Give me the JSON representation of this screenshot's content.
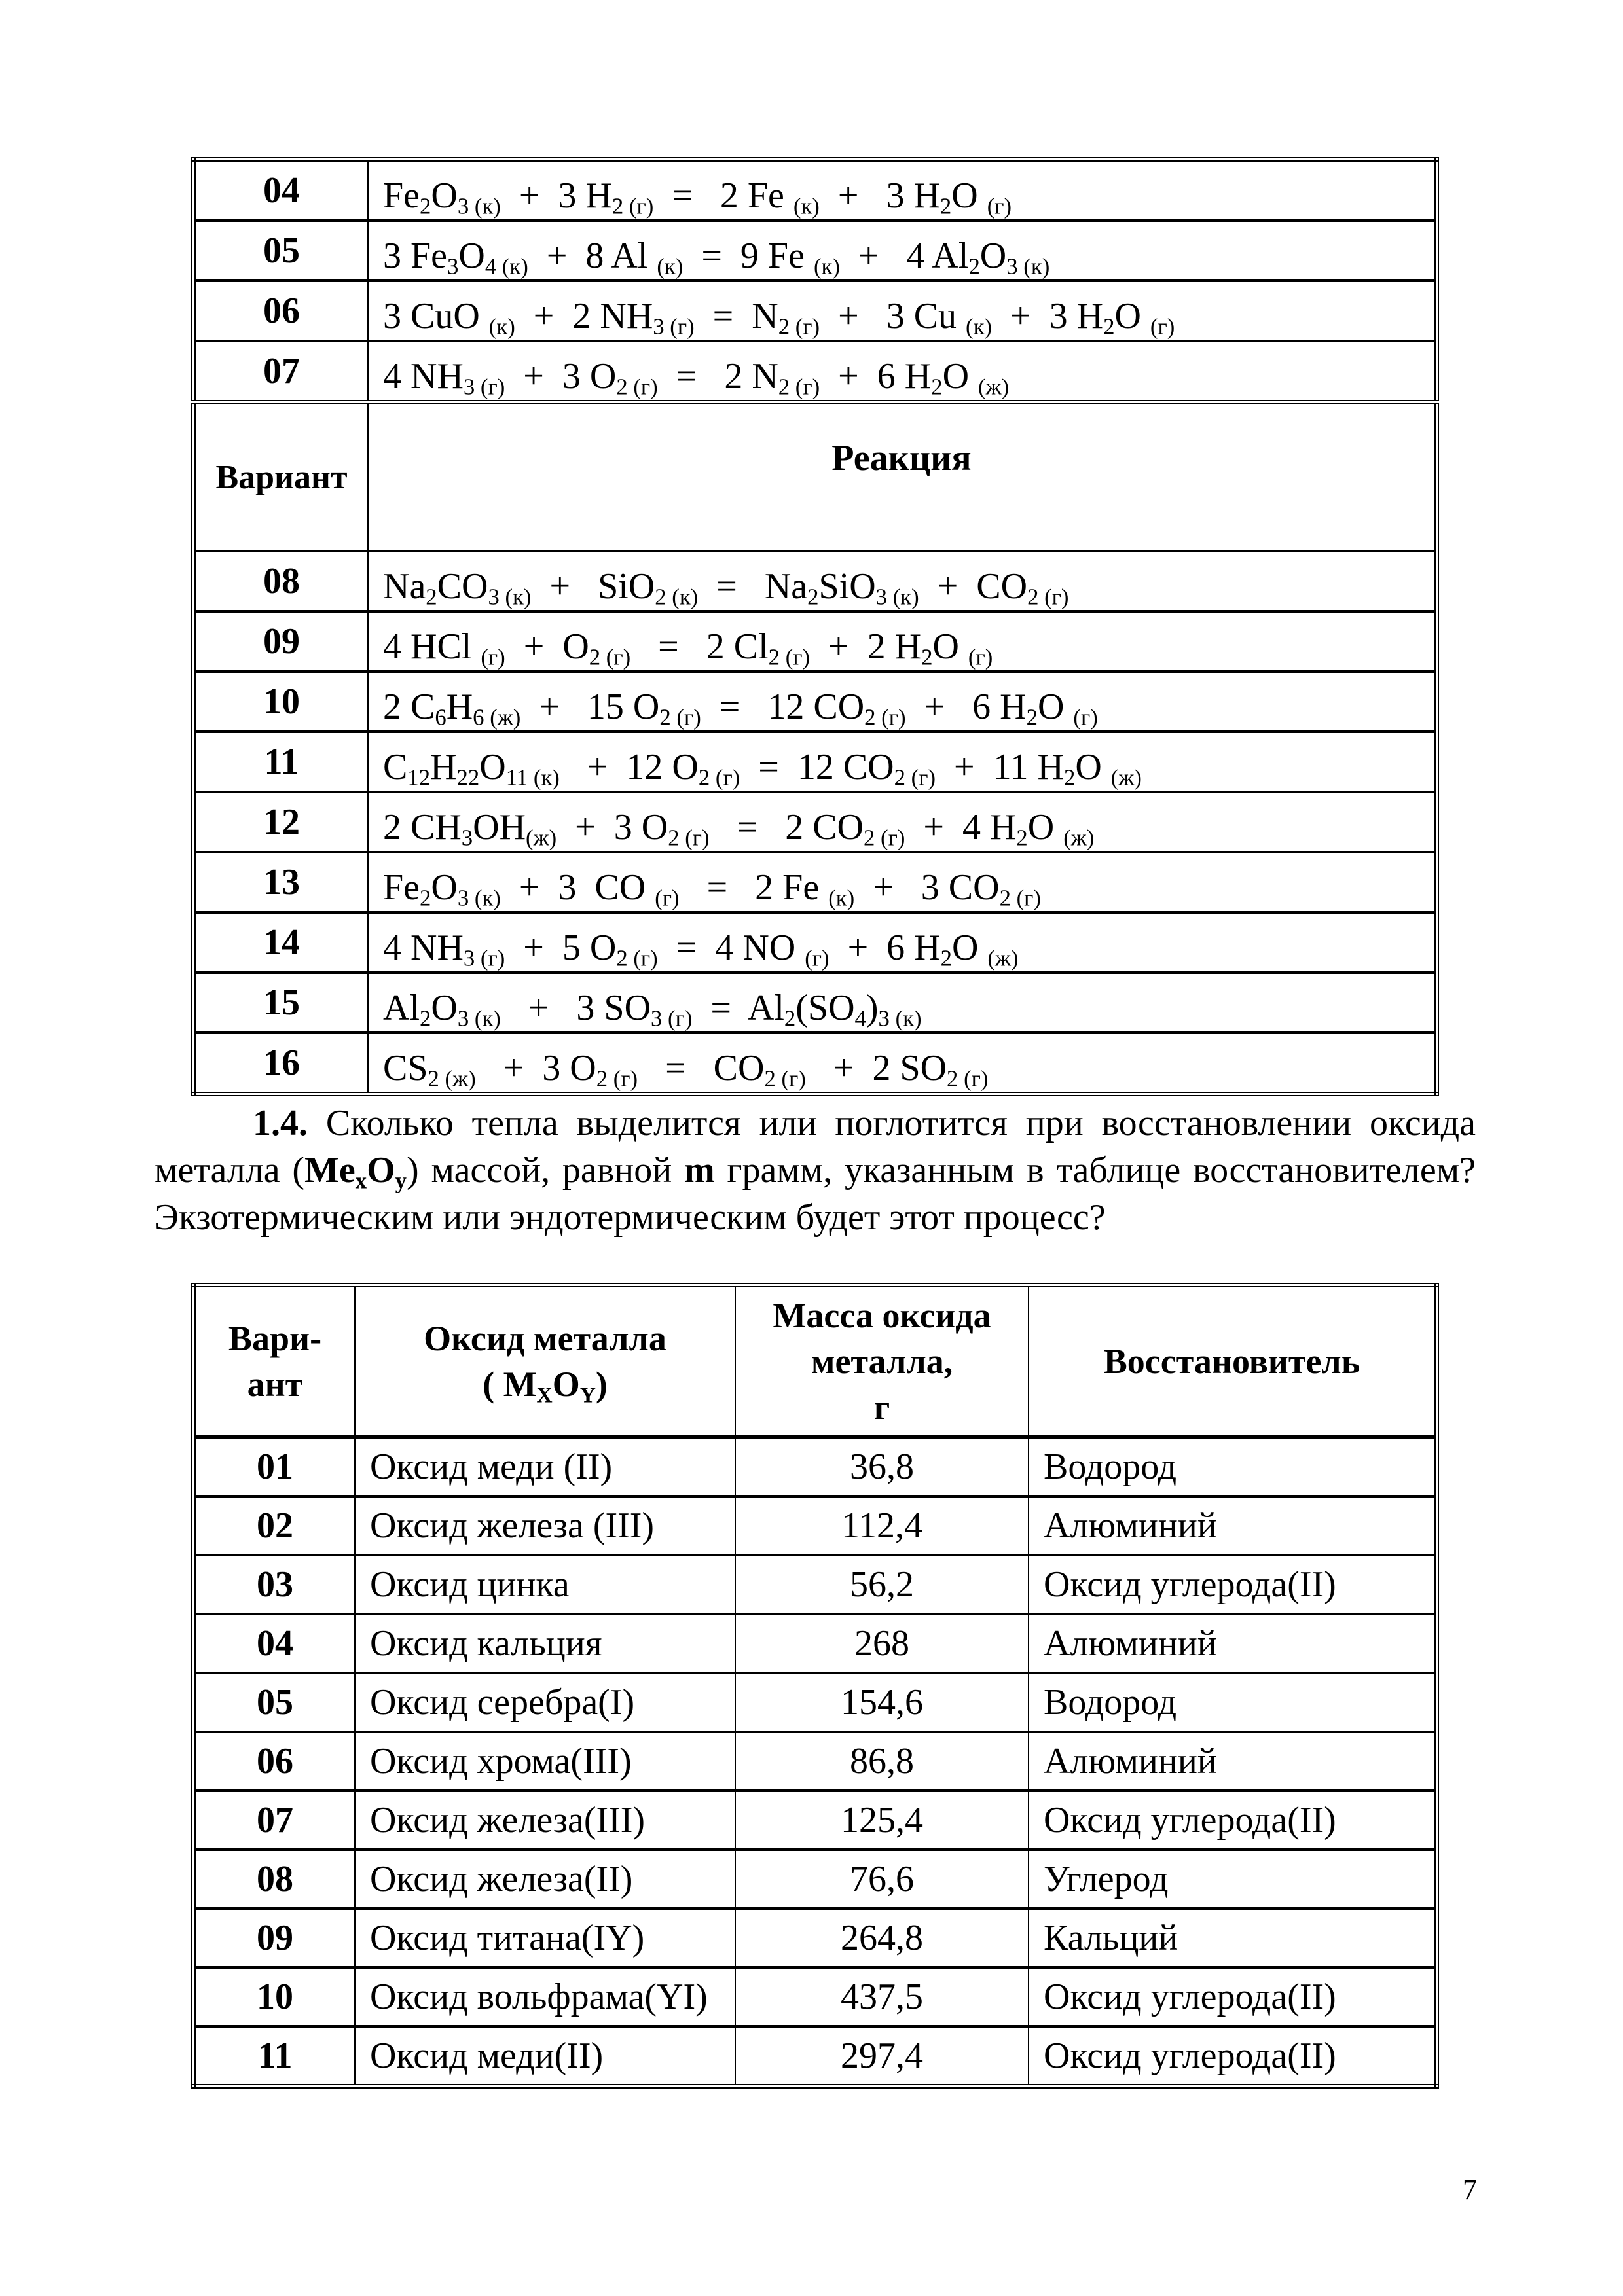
{
  "table1": {
    "header": {
      "variant": "Вариант",
      "reaction": "Реакция"
    },
    "rows_before_header": [
      {
        "variant": "04",
        "equation": [
          [
            "Fe",
            "2"
          ],
          [
            "O",
            "3 (к)"
          ],
          [
            "  +  3 H",
            "2 (г)"
          ],
          [
            "  =   2 Fe ",
            "(к)"
          ],
          [
            "  +   3 H",
            "2"
          ],
          [
            "O ",
            "(г)"
          ]
        ]
      },
      {
        "variant": "05",
        "equation": [
          [
            "3 Fe",
            "3"
          ],
          [
            "O",
            "4 (к)"
          ],
          [
            "  +  8 Al ",
            "(к)"
          ],
          [
            "  =  9 Fe ",
            "(к)"
          ],
          [
            "  +   4 Al",
            "2"
          ],
          [
            "O",
            "3 (к)"
          ]
        ]
      },
      {
        "variant": "06",
        "equation": [
          [
            "3 CuO ",
            "(к)"
          ],
          [
            "  +  2 NH",
            "3 (г)"
          ],
          [
            "  =  N",
            "2 (г)"
          ],
          [
            "  +   3 Cu ",
            "(к)"
          ],
          [
            "  +  3 H",
            "2"
          ],
          [
            "O ",
            "(г)"
          ]
        ]
      },
      {
        "variant": "07",
        "equation": [
          [
            "4 NH",
            "3 (г)"
          ],
          [
            "  +  3 O",
            "2 (г)"
          ],
          [
            "  =   2 N",
            "2 (г)"
          ],
          [
            "  +  6 H",
            "2"
          ],
          [
            "O ",
            "(ж)"
          ]
        ]
      }
    ],
    "rows_after_header": [
      {
        "variant": "08",
        "equation": [
          [
            "Na",
            "2"
          ],
          [
            "CO",
            "3 (к)"
          ],
          [
            "  +   SiO",
            "2 (к)"
          ],
          [
            "  =   Na",
            "2"
          ],
          [
            "SiO",
            "3 (к)"
          ],
          [
            "  +  CO",
            "2 (г)"
          ]
        ]
      },
      {
        "variant": "09",
        "equation": [
          [
            "4 HCl ",
            "(г)"
          ],
          [
            "  +  O",
            "2 (г)"
          ],
          [
            "   =   2 Cl",
            "2 (г)"
          ],
          [
            "  +  2 H",
            "2"
          ],
          [
            "O ",
            "(г)"
          ]
        ]
      },
      {
        "variant": "10",
        "equation": [
          [
            "2 C",
            "6"
          ],
          [
            "H",
            "6 (ж)"
          ],
          [
            "  +   15 O",
            "2 (г)"
          ],
          [
            "  =   12 CO",
            "2 (г)"
          ],
          [
            "  +   6 H",
            "2"
          ],
          [
            "O ",
            "(г)"
          ]
        ]
      },
      {
        "variant": "11",
        "equation": [
          [
            "C",
            "12"
          ],
          [
            "H",
            "22"
          ],
          [
            "O",
            "11 (к)"
          ],
          [
            "   +  12 O",
            "2 (г)"
          ],
          [
            "  =  12 CO",
            "2 (г)"
          ],
          [
            "  +  11 H",
            "2"
          ],
          [
            "O ",
            "(ж)"
          ]
        ]
      },
      {
        "variant": "12",
        "equation": [
          [
            "2 CH",
            "3"
          ],
          [
            "OH",
            "(ж)"
          ],
          [
            "  +  3 O",
            "2 (г)"
          ],
          [
            "   =   2 CO",
            "2 (г)"
          ],
          [
            "  +  4 H",
            "2"
          ],
          [
            "O ",
            "(ж)"
          ]
        ]
      },
      {
        "variant": "13",
        "equation": [
          [
            "Fe",
            "2"
          ],
          [
            "O",
            "3 (к)"
          ],
          [
            "  +  3  CO ",
            "(г)"
          ],
          [
            "   =   2 Fe ",
            "(к)"
          ],
          [
            "  +   3 CO",
            "2 (г)"
          ]
        ]
      },
      {
        "variant": "14",
        "equation": [
          [
            "4 NH",
            "3 (г)"
          ],
          [
            "  +  5 O",
            "2 (г)"
          ],
          [
            "  =  4 NO ",
            "(г)"
          ],
          [
            "  +  6 H",
            "2"
          ],
          [
            "O ",
            "(ж)"
          ]
        ]
      },
      {
        "variant": "15",
        "equation": [
          [
            "Al",
            "2"
          ],
          [
            "O",
            "3 (к)"
          ],
          [
            "   +   3 SO",
            "3 (г)"
          ],
          [
            "  =  Al",
            "2"
          ],
          [
            "(SO",
            "4"
          ],
          [
            ")",
            "3 (к)"
          ]
        ]
      },
      {
        "variant": "16",
        "equation": [
          [
            "CS",
            "2 (ж)"
          ],
          [
            "   +  3 O",
            "2 (г)"
          ],
          [
            "   =   CO",
            "2 (г)"
          ],
          [
            "   +  2 SO",
            "2 (г)"
          ]
        ]
      }
    ]
  },
  "problem": {
    "number": "1.4.",
    "parts": [
      {
        "text": "  Сколько тепла выделится или поглотится при восстановлении оксида металла (",
        "bold": false
      },
      {
        "text": "Me",
        "bold": true
      },
      {
        "sub": "x",
        "bold": true
      },
      {
        "text": "O",
        "bold": true
      },
      {
        "sub": "y",
        "bold": true
      },
      {
        "text": ") массой, равной  ",
        "bold": false
      },
      {
        "text": "m",
        "bold": true
      },
      {
        "text": " грамм, указанным в таблице восстановителем?  Экзотермическим  или эндотермическим будет этот процесс?",
        "bold": false
      }
    ]
  },
  "table2": {
    "headers": {
      "variant": "Вари-\nант",
      "oxide": "Оксид металла",
      "oxide_formula": [
        [
          "( M",
          "X"
        ],
        [
          "O",
          "Y"
        ],
        [
          ")",
          ""
        ]
      ],
      "mass": "Масса оксида\nметалла,\nг",
      "reducer": "Восстановитель"
    },
    "rows": [
      {
        "variant": "01",
        "oxide": "Оксид  меди (II)",
        "mass": "36,8",
        "reducer": "Водород"
      },
      {
        "variant": "02",
        "oxide": "Оксид железа (III)",
        "mass": "112,4",
        "reducer": "Алюминий"
      },
      {
        "variant": "03",
        "oxide": "Оксид цинка",
        "mass": "56,2",
        "reducer": "Оксид углерода(II)"
      },
      {
        "variant": "04",
        "oxide": "Оксид кальция",
        "mass": "268",
        "reducer": "Алюминий"
      },
      {
        "variant": "05",
        "oxide": "Оксид серебра(I)",
        "mass": "154,6",
        "reducer": "Водород"
      },
      {
        "variant": "06",
        "oxide": "Оксид хрома(III)",
        "mass": "86,8",
        "reducer": "Алюминий"
      },
      {
        "variant": "07",
        "oxide": "Оксид железа(III)",
        "mass": "125,4",
        "reducer": "Оксид углерода(II)"
      },
      {
        "variant": "08",
        "oxide": "Оксид железа(II)",
        "mass": "76,6",
        "reducer": "Углерод"
      },
      {
        "variant": "09",
        "oxide": "Оксид титана(IY)",
        "mass": "264,8",
        "reducer": "Кальций"
      },
      {
        "variant": "10",
        "oxide": "Оксид вольфрама(YI)",
        "mass": "437,5",
        "reducer": "Оксид углерода(II)"
      },
      {
        "variant": "11",
        "oxide": "Оксид меди(II)",
        "mass": "297,4",
        "reducer": "Оксид углерода(II)"
      }
    ]
  },
  "page_number": "7"
}
